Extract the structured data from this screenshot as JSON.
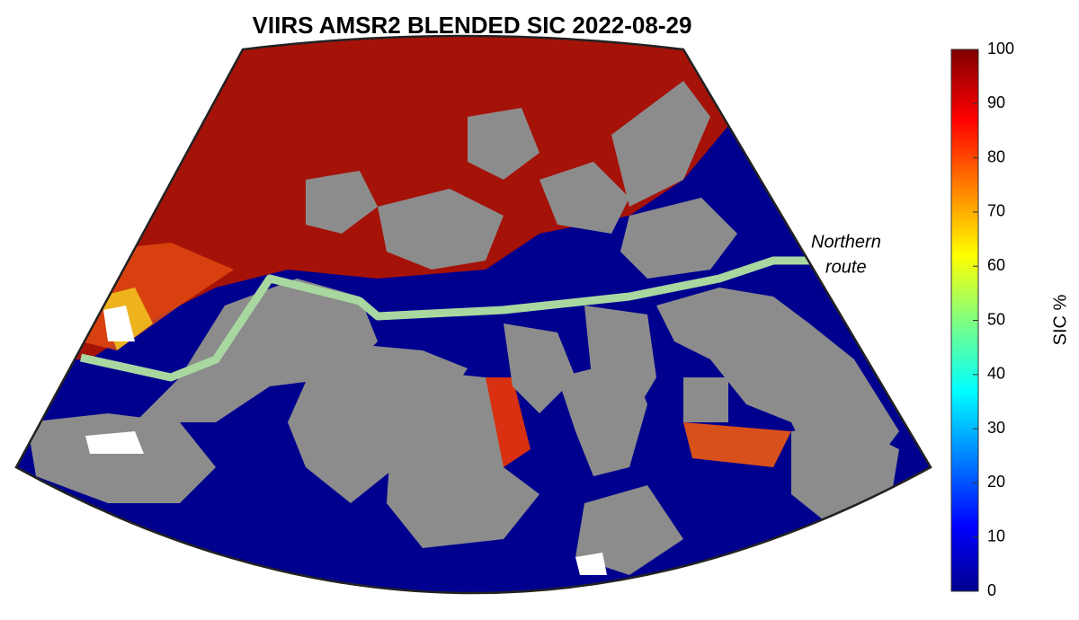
{
  "chart_data": {
    "type": "map",
    "title": "VIIRS AMSR2 BLENDED SIC 2022-08-29",
    "annotations": [
      "Northern",
      "route"
    ],
    "colorbar": {
      "label": "SIC %",
      "lim": [
        0,
        100
      ],
      "ticks": [
        0,
        10,
        20,
        30,
        40,
        50,
        60,
        70,
        80,
        90,
        100
      ]
    }
  }
}
